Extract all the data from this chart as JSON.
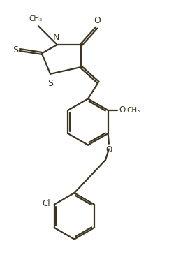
{
  "bg_color": "#ffffff",
  "line_color": "#3d3520",
  "line_width": 1.6,
  "font_size": 8.5,
  "fig_width": 2.52,
  "fig_height": 3.98,
  "xlim": [
    0,
    10
  ],
  "ylim": [
    0,
    16
  ]
}
